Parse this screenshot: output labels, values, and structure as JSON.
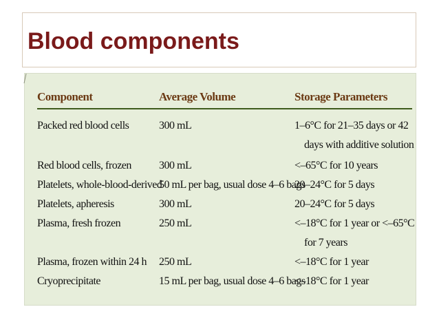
{
  "slide": {
    "title": "Blood components"
  },
  "table": {
    "headers": [
      "Component",
      "Average Volume",
      "Storage Parameters"
    ],
    "rows": [
      {
        "component": "Packed red blood cells",
        "volume": "300 mL",
        "storage": [
          "1–6°C for 21–35 days or 42",
          "days with additive solution"
        ]
      },
      {
        "component": "Red blood cells, frozen",
        "volume": "300 mL",
        "storage": [
          "<–65°C for 10 years"
        ]
      },
      {
        "component": "Platelets, whole-blood-derived",
        "volume": "50 mL per bag, usual dose 4–6 bags",
        "storage": [
          "20–24°C for 5 days"
        ]
      },
      {
        "component": "Platelets, apheresis",
        "volume": "300 mL",
        "storage": [
          "20–24°C for 5 days"
        ]
      },
      {
        "component": "Plasma, fresh frozen",
        "volume": "250 mL",
        "storage": [
          "<–18°C for 1 year or <–65°C",
          "for 7 years"
        ]
      },
      {
        "component": "Plasma, frozen within 24 h",
        "volume": "250 mL",
        "storage": [
          "<–18°C for 1 year"
        ]
      },
      {
        "component": "Cryoprecipitate",
        "volume": "15 mL per bag, usual dose 4–6 bags",
        "storage": [
          "<–18°C for 1 year"
        ]
      }
    ]
  },
  "colors": {
    "title": "#7a1a1a",
    "header_text": "#6b3a14",
    "table_background": "#e7eedb",
    "header_rule": "#3d5a1c"
  }
}
